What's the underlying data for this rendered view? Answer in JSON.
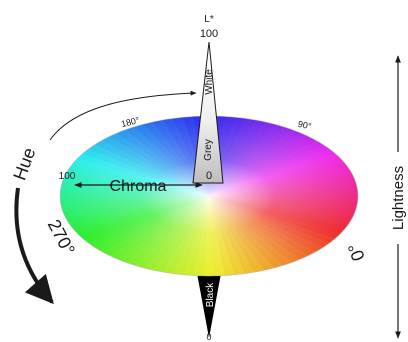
{
  "labels": {
    "l_star": "L*",
    "l_100": "100",
    "white": "White",
    "grey": "Grey",
    "black": "Black",
    "center_0": "0",
    "bottom_0": "0",
    "chroma": "Chroma",
    "chroma_100": "100",
    "hue": "Hue",
    "deg_180": "180°",
    "deg_90": "90°",
    "deg_270": "270°",
    "deg_0": "0°",
    "lightness": "Lightness"
  },
  "colors": {
    "ink": "#1a1a1a",
    "white_cone_top": "#ffffff",
    "white_cone_bottom": "#c8c8c8",
    "black_cone": "#000000",
    "hue_0": "#ff2a6d",
    "hue_90": "#ffe84a",
    "hue_180": "#4cc94e",
    "hue_270": "#3a55d6"
  },
  "icons": {
    "chroma_arrow": "double-arrow-icon",
    "hue_arrow": "curved-arrow-icon",
    "lightness_arrow": "vertical-double-arrow-icon"
  }
}
